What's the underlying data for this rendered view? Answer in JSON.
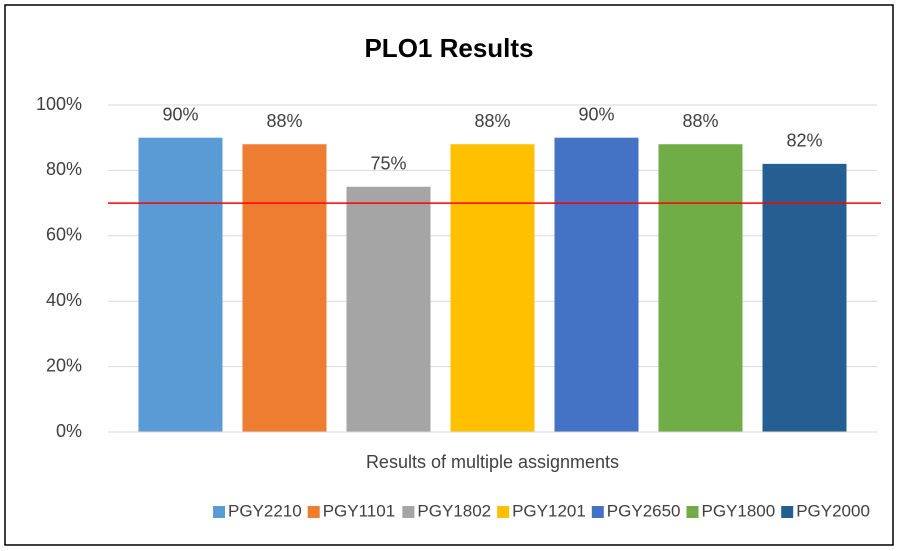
{
  "chart_data": {
    "type": "bar",
    "title": "PLO1 Results",
    "categories": [
      "Results of multiple assignments"
    ],
    "series": [
      {
        "name": "PGY2210",
        "color": "#5b9bd5",
        "values": [
          90
        ],
        "value_labels": [
          "90%"
        ]
      },
      {
        "name": "PGY1101",
        "color": "#ed7d31",
        "values": [
          88
        ],
        "value_labels": [
          "88%"
        ]
      },
      {
        "name": "PGY1802",
        "color": "#a5a5a5",
        "values": [
          75
        ],
        "value_labels": [
          "75%"
        ]
      },
      {
        "name": "PGY1201",
        "color": "#ffc000",
        "values": [
          88
        ],
        "value_labels": [
          "88%"
        ]
      },
      {
        "name": "PGY2650",
        "color": "#4472c4",
        "values": [
          90
        ],
        "value_labels": [
          "90%"
        ]
      },
      {
        "name": "PGY1800",
        "color": "#70ad47",
        "values": [
          88
        ],
        "value_labels": [
          "88%"
        ]
      },
      {
        "name": "PGY2000",
        "color": "#255e91",
        "values": [
          82
        ],
        "value_labels": [
          "82%"
        ]
      }
    ],
    "ylim": [
      0,
      100
    ],
    "yticks": [
      {
        "value": 0,
        "label": "0%"
      },
      {
        "value": 20,
        "label": "20%"
      },
      {
        "value": 40,
        "label": "40%"
      },
      {
        "value": 60,
        "label": "60%"
      },
      {
        "value": 80,
        "label": "80%"
      },
      {
        "value": 100,
        "label": "100%"
      }
    ],
    "grid": true,
    "legend": "bottom",
    "target": 70,
    "target_color": "#ff0000"
  }
}
